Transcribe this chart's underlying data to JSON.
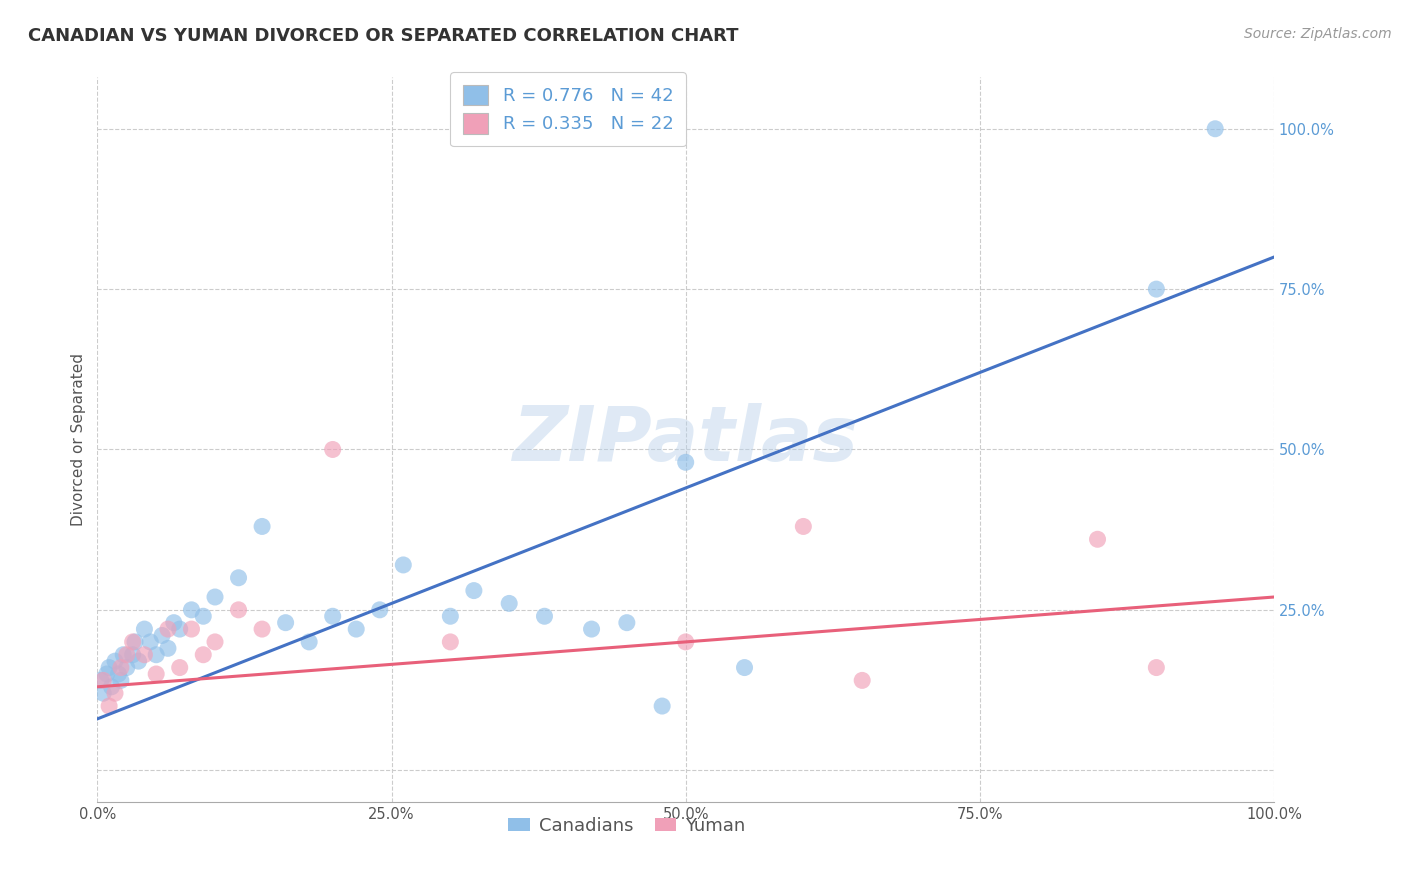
{
  "title": "CANADIAN VS YUMAN DIVORCED OR SEPARATED CORRELATION CHART",
  "source_text": "Source: ZipAtlas.com",
  "ylabel": "Divorced or Separated",
  "watermark": "ZIPatlas",
  "legend_r1": "R = 0.776   N = 42",
  "legend_r2": "R = 0.335   N = 22",
  "legend_label1": "Canadians",
  "legend_label2": "Yuman",
  "blue_dot_color": "#90bfe8",
  "pink_dot_color": "#f0a0b8",
  "blue_line_color": "#4472c4",
  "pink_line_color": "#e8607a",
  "grid_color": "#cccccc",
  "right_tick_color": "#5b9bd5",
  "xlim": [
    0,
    100
  ],
  "ylim": [
    -5,
    108
  ],
  "xticklabels": [
    "0.0%",
    "25.0%",
    "50.0%",
    "75.0%",
    "100.0%"
  ],
  "blue_scatter_x": [
    0.3,
    0.5,
    0.8,
    1.0,
    1.2,
    1.5,
    1.8,
    2.0,
    2.2,
    2.5,
    3.0,
    3.2,
    3.5,
    4.0,
    4.5,
    5.0,
    5.5,
    6.0,
    6.5,
    7.0,
    8.0,
    9.0,
    10.0,
    12.0,
    14.0,
    16.0,
    18.0,
    20.0,
    22.0,
    24.0,
    26.0,
    30.0,
    32.0,
    35.0,
    38.0,
    42.0,
    45.0,
    48.0,
    50.0,
    55.0,
    90.0,
    95.0
  ],
  "blue_scatter_y": [
    14,
    12,
    15,
    16,
    13,
    17,
    15,
    14,
    18,
    16,
    18,
    20,
    17,
    22,
    20,
    18,
    21,
    19,
    23,
    22,
    25,
    24,
    27,
    30,
    38,
    23,
    20,
    24,
    22,
    25,
    32,
    24,
    28,
    26,
    24,
    22,
    23,
    10,
    48,
    16,
    75,
    100
  ],
  "pink_scatter_x": [
    0.5,
    1.0,
    1.5,
    2.0,
    2.5,
    3.0,
    4.0,
    5.0,
    6.0,
    7.0,
    8.0,
    9.0,
    10.0,
    12.0,
    14.0,
    20.0,
    30.0,
    50.0,
    60.0,
    65.0,
    85.0,
    90.0
  ],
  "pink_scatter_y": [
    14,
    10,
    12,
    16,
    18,
    20,
    18,
    15,
    22,
    16,
    22,
    18,
    20,
    25,
    22,
    50,
    20,
    20,
    38,
    14,
    36,
    16
  ],
  "blue_line_x": [
    0,
    100
  ],
  "blue_line_y": [
    8,
    80
  ],
  "pink_line_x": [
    0,
    100
  ],
  "pink_line_y": [
    13,
    27
  ],
  "figsize": [
    14.06,
    8.92
  ],
  "dpi": 100,
  "title_fontsize": 13,
  "axis_label_fontsize": 11,
  "tick_fontsize": 10.5,
  "legend_fontsize": 13,
  "source_fontsize": 10,
  "dot_size": 150,
  "dot_alpha": 0.65
}
